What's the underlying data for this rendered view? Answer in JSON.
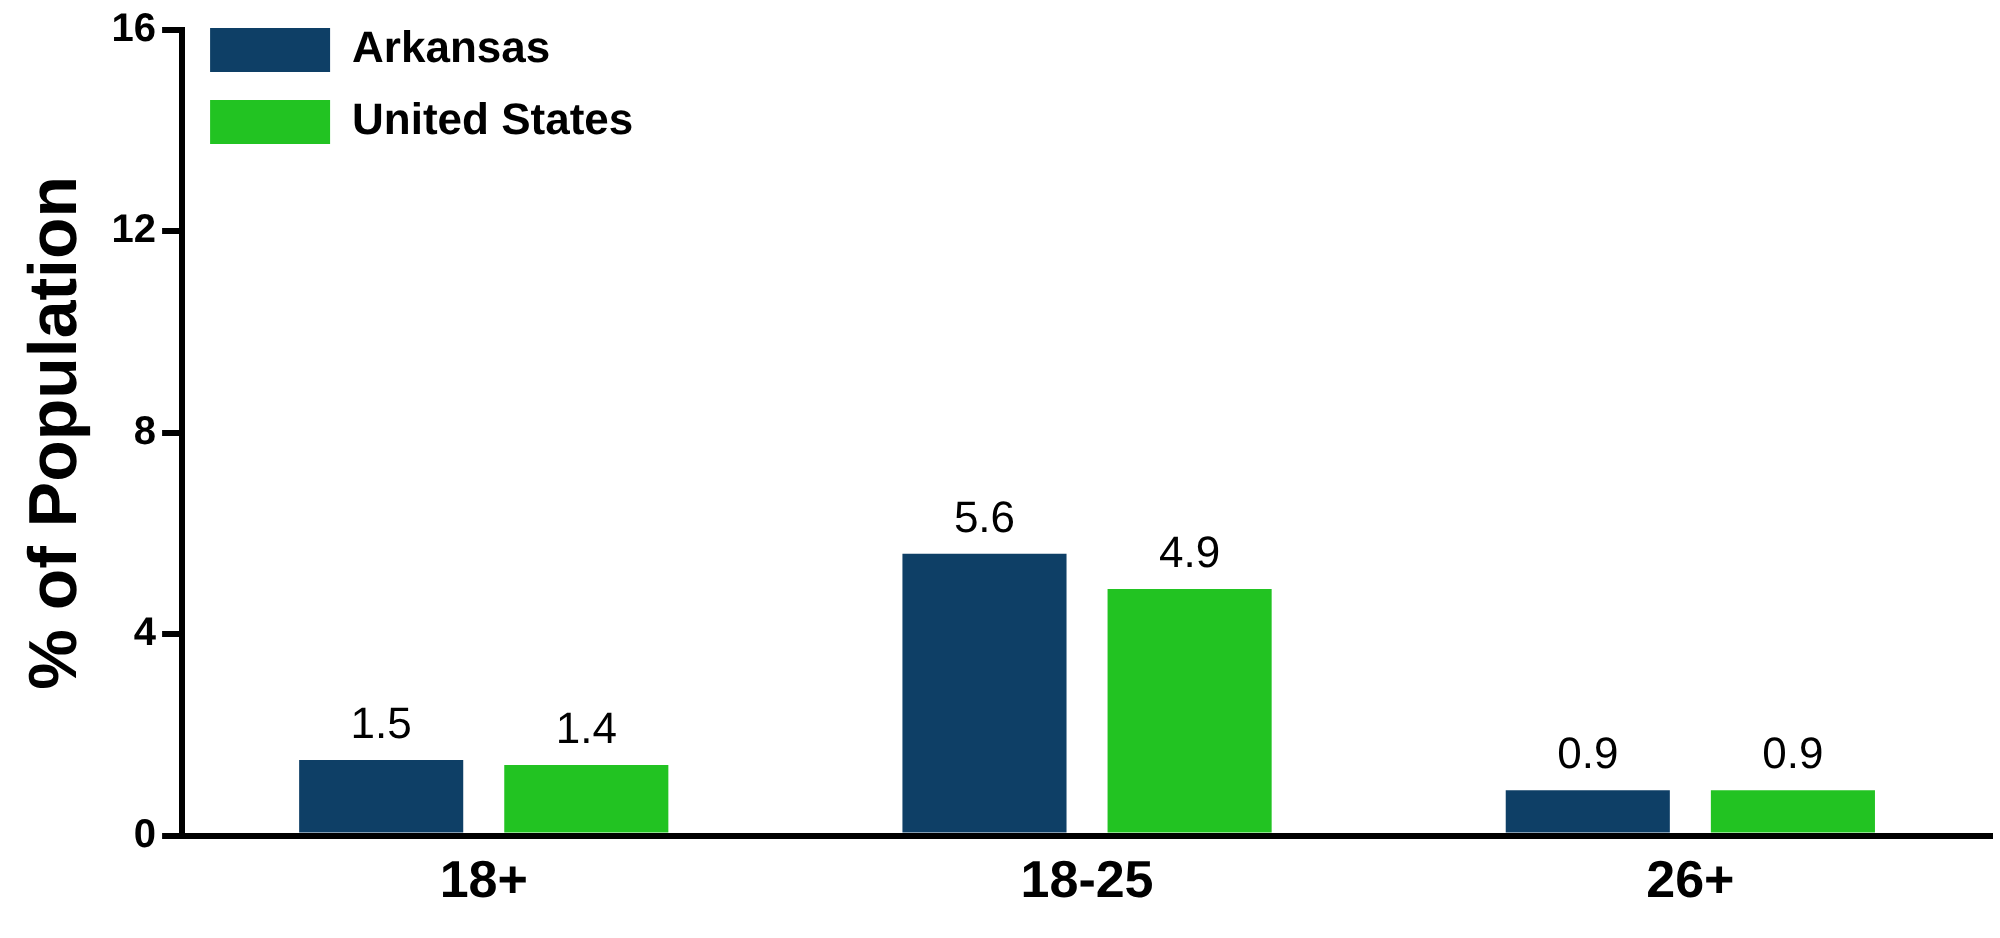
{
  "chart_data": {
    "type": "bar",
    "ylabel": "% of Population",
    "categories": [
      "18+",
      "18-25",
      "26+"
    ],
    "series": [
      {
        "name": "Arkansas",
        "color": "#0e3f66",
        "values": [
          1.5,
          5.6,
          0.9
        ]
      },
      {
        "name": "United States",
        "color": "#22c322",
        "values": [
          1.4,
          4.9,
          0.9
        ]
      }
    ],
    "ylim": [
      0,
      16
    ],
    "yticks": [
      0,
      4,
      8,
      12,
      16
    ],
    "grid": false,
    "legend": "top left",
    "data_labels": true
  }
}
